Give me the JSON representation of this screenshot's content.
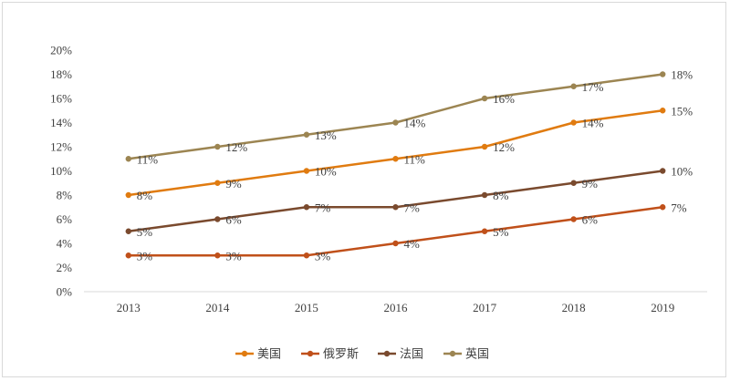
{
  "chart_data": {
    "type": "line",
    "title": "",
    "xlabel": "",
    "ylabel": "",
    "categories": [
      "2013",
      "2014",
      "2015",
      "2016",
      "2017",
      "2018",
      "2019"
    ],
    "ylim": [
      0,
      20
    ],
    "yticks": [
      "0%",
      "2%",
      "4%",
      "6%",
      "8%",
      "10%",
      "12%",
      "14%",
      "16%",
      "18%",
      "20%"
    ],
    "grid": false,
    "legend_position": "bottom",
    "series": [
      {
        "name": "美国",
        "color": "#E07B10",
        "values": [
          8,
          9,
          10,
          11,
          12,
          14,
          15
        ],
        "labels": [
          "8%",
          "9%",
          "10%",
          "11%",
          "12%",
          "14%",
          "15%"
        ]
      },
      {
        "name": "俄罗斯",
        "color": "#C0501A",
        "values": [
          3,
          3,
          3,
          4,
          5,
          6,
          7
        ],
        "labels": [
          "3%",
          "3%",
          "3%",
          "4%",
          "5%",
          "6%",
          "7%"
        ]
      },
      {
        "name": "法国",
        "color": "#7A4A2E",
        "values": [
          5,
          6,
          7,
          7,
          8,
          9,
          10
        ],
        "labels": [
          "5%",
          "6%",
          "7%",
          "7%",
          "8%",
          "9%",
          "10%"
        ]
      },
      {
        "name": "英国",
        "color": "#9C8552",
        "values": [
          11,
          12,
          13,
          14,
          16,
          17,
          18
        ],
        "labels": [
          "11%",
          "12%",
          "13%",
          "14%",
          "16%",
          "17%",
          "18%"
        ]
      }
    ]
  }
}
